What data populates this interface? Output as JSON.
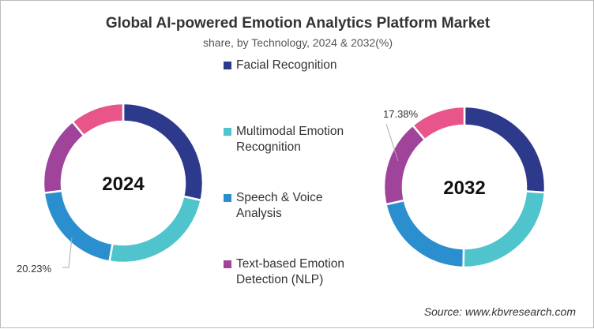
{
  "chart_data": [
    {
      "type": "pie",
      "donut": true,
      "center_label": "2024",
      "title": "Global AI-powered Emotion Analytics Platform Market",
      "subtitle": "share, by Technology, 2024 & 2032(%)",
      "categories": [
        "Facial Recognition",
        "Multimodal Emotion Recognition",
        "Speech & Voice Analysis",
        "Text-based Emotion Detection (NLP)",
        ""
      ],
      "values": [
        28.47,
        24.3,
        20.23,
        16.0,
        11.0
      ],
      "annotated": {
        "index": 2,
        "label": "20.23%"
      }
    },
    {
      "type": "pie",
      "donut": true,
      "center_label": "2032",
      "categories": [
        "Facial Recognition",
        "Multimodal Emotion Recognition",
        "Speech & Voice Analysis",
        "Text-based Emotion Detection (NLP)",
        ""
      ],
      "values": [
        26.1,
        24.1,
        21.3,
        17.38,
        11.1
      ],
      "annotated": {
        "index": 3,
        "label": "17.38%"
      }
    }
  ],
  "colors": [
    "#2d3a8c",
    "#4fc4cd",
    "#2b8fcf",
    "#a0449b",
    "#e8558a"
  ],
  "title": "Global AI-powered Emotion Analytics Platform Market",
  "subtitle": "share, by Technology, 2024 & 2032(%)",
  "legend": [
    {
      "line1": "Facial Recognition",
      "line2": ""
    },
    {
      "line1": "Multimodal Emotion",
      "line2": "Recognition"
    },
    {
      "line1": "Speech & Voice",
      "line2": "Analysis"
    },
    {
      "line1": "Text-based Emotion",
      "line2": "Detection (NLP)"
    }
  ],
  "source": "Source: www.kbvresearch.com"
}
